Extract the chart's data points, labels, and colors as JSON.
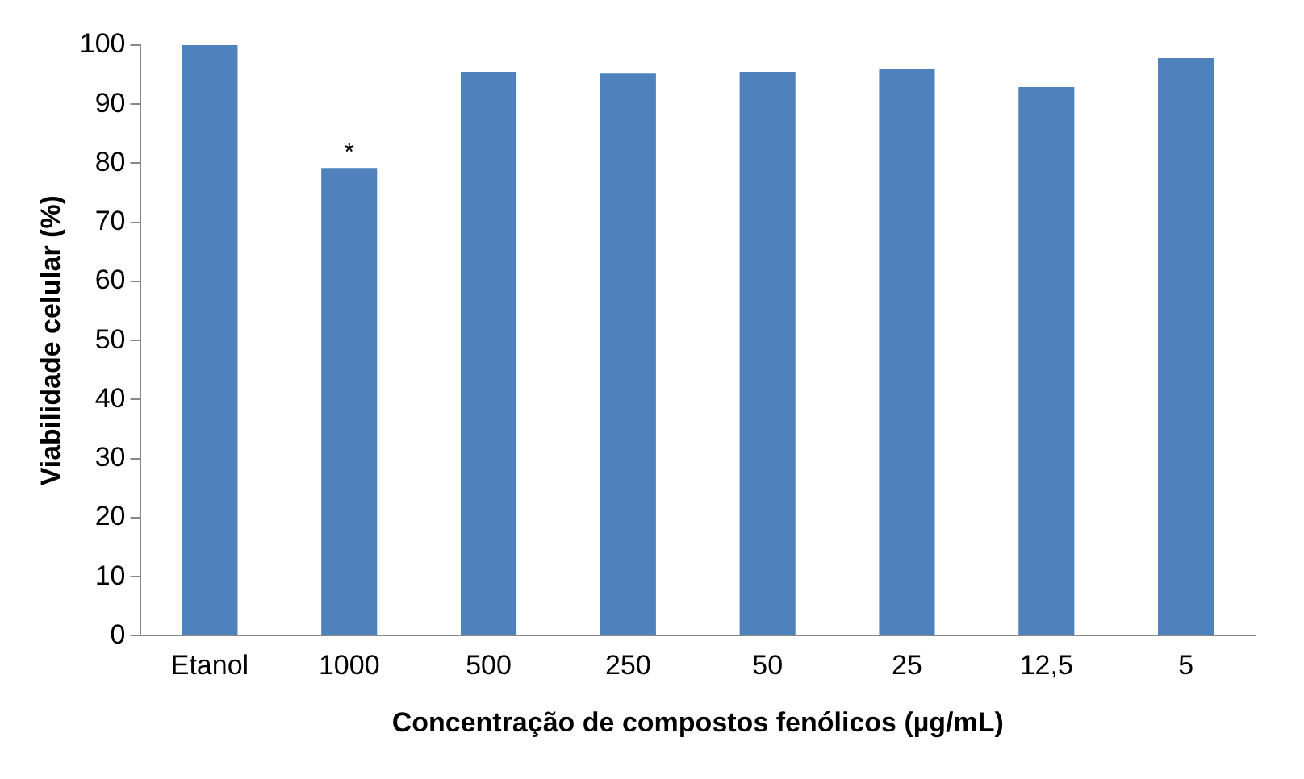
{
  "chart_data": {
    "type": "bar",
    "xlabel": "Concentração de compostos fenólicos (µg/mL)",
    "ylabel": "Viabilidade celular (%)",
    "categories": [
      "Etanol",
      "1000",
      "500",
      "250",
      "50",
      "25",
      "12,5",
      "5"
    ],
    "values": [
      100,
      79.2,
      95.5,
      95.2,
      95.5,
      95.9,
      92.9,
      97.8
    ],
    "color": "#4f81bd",
    "ylim": [
      0,
      100
    ],
    "yticks": [
      0,
      10,
      20,
      30,
      40,
      50,
      60,
      70,
      80,
      90,
      100
    ],
    "grid": false,
    "legend": false,
    "annotations": [
      {
        "text": "*",
        "x": "1000",
        "y": 79.2
      }
    ]
  }
}
